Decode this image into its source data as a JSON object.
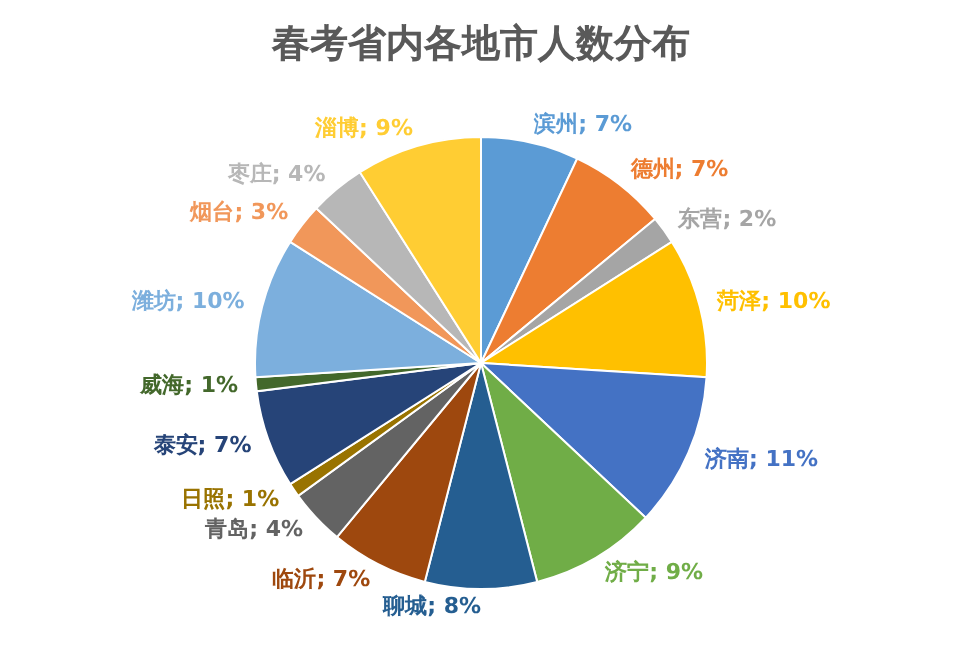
{
  "chart_data": {
    "type": "pie",
    "title": "春考省内各地市人数分布",
    "categories": [
      "滨州",
      "德州",
      "东营",
      "菏泽",
      "济南",
      "济宁",
      "聊城",
      "临沂",
      "青岛",
      "日照",
      "泰安",
      "威海",
      "潍坊",
      "烟台",
      "枣庄",
      "淄博"
    ],
    "values": [
      7,
      7,
      2,
      10,
      11,
      9,
      8,
      7,
      4,
      1,
      7,
      1,
      10,
      3,
      4,
      9
    ],
    "colors": [
      "#5b9bd5",
      "#ed7d31",
      "#a5a5a5",
      "#ffc000",
      "#4472c4",
      "#70ad47",
      "#255e91",
      "#9e480e",
      "#636363",
      "#997300",
      "#264478",
      "#43682b",
      "#7cafdd",
      "#f1975a",
      "#b7b7b7",
      "#ffcd33"
    ],
    "value_labels": [
      "7%",
      "7%",
      "2%",
      "10%",
      "11%",
      "9%",
      "8%",
      "7%",
      "4%",
      "1%",
      "7%",
      "1%",
      "10%",
      "3%",
      "4%",
      "9%"
    ]
  }
}
